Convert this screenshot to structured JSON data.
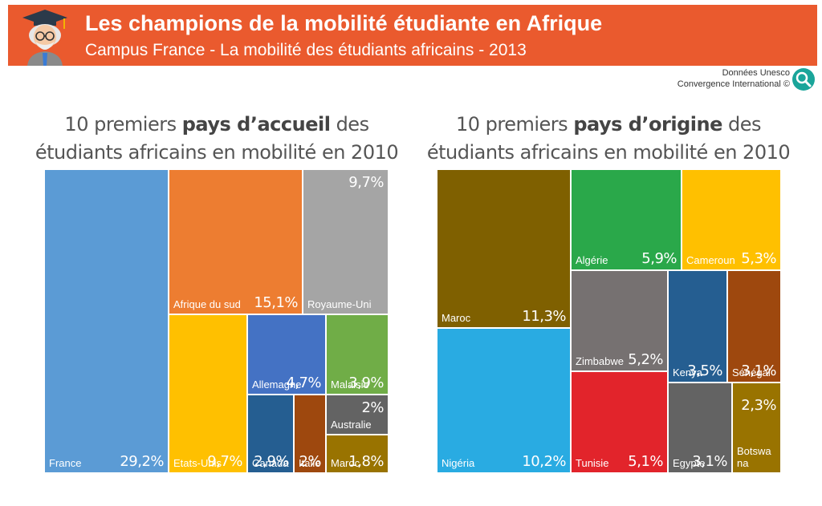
{
  "header": {
    "title": "Les champions de la mobilité étudiante en Afrique",
    "subtitle": "Campus France - La mobilité des étudiants africains - 2013",
    "avatar_icon": "graduate-professor-icon",
    "banner_color": "#ea5a2e"
  },
  "credit": {
    "line1": "Données Unesco",
    "line2": "Convergence International ©",
    "icon": "search-magnifier-icon"
  },
  "chart_data": [
    {
      "type": "treemap",
      "title_pre": "10 premiers ",
      "title_bold": "pays d’accueil",
      "title_post": " des étudiants africains en mobilité en 2010",
      "tiles": [
        {
          "label": "France",
          "value": "29,2%",
          "color": "#5b9bd5"
        },
        {
          "label": "Afrique du sud",
          "value": "15,1%",
          "color": "#ed7d31"
        },
        {
          "label": "Royaume-Uni",
          "value": "9,7%",
          "color": "#a5a5a5"
        },
        {
          "label": "Etats-Unis",
          "value": "9,7%",
          "color": "#ffc000"
        },
        {
          "label": "Allemagne",
          "value": "4,7%",
          "color": "#4472c4"
        },
        {
          "label": "Malaisie",
          "value": "3,9%",
          "color": "#70ad47"
        },
        {
          "label": "Australie",
          "value": "2%",
          "color": "#636363"
        },
        {
          "label": "Canada",
          "value": "2,9%",
          "color": "#255e91"
        },
        {
          "label": "Italie",
          "value": "2%",
          "color": "#9e480e"
        },
        {
          "label": "Maroc",
          "value": "1,8%",
          "color": "#997300"
        }
      ]
    },
    {
      "type": "treemap",
      "title_pre": "10 premiers ",
      "title_bold": "pays d’origine",
      "title_post": " des étudiants africains en mobilité en 2010",
      "tiles": [
        {
          "label": "Maroc",
          "value": "11,3%",
          "color": "#7f6000"
        },
        {
          "label": "Nigéria",
          "value": "10,2%",
          "color": "#29abe2"
        },
        {
          "label": "Algérie",
          "value": "5,9%",
          "color": "#2aa84a"
        },
        {
          "label": "Cameroun",
          "value": "5,3%",
          "color": "#ffc000"
        },
        {
          "label": "Zimbabwe",
          "value": "5,2%",
          "color": "#767171"
        },
        {
          "label": "Kenya",
          "value": "3,5%",
          "color": "#255e91"
        },
        {
          "label": "Sénégal",
          "value": "3,1%",
          "color": "#9e480e"
        },
        {
          "label": "Tunisie",
          "value": "5,1%",
          "color": "#e2242b"
        },
        {
          "label": "Egypte",
          "value": "3,1%",
          "color": "#636363"
        },
        {
          "label": "Botswana",
          "value": "2,3%",
          "color": "#997300"
        }
      ]
    }
  ]
}
